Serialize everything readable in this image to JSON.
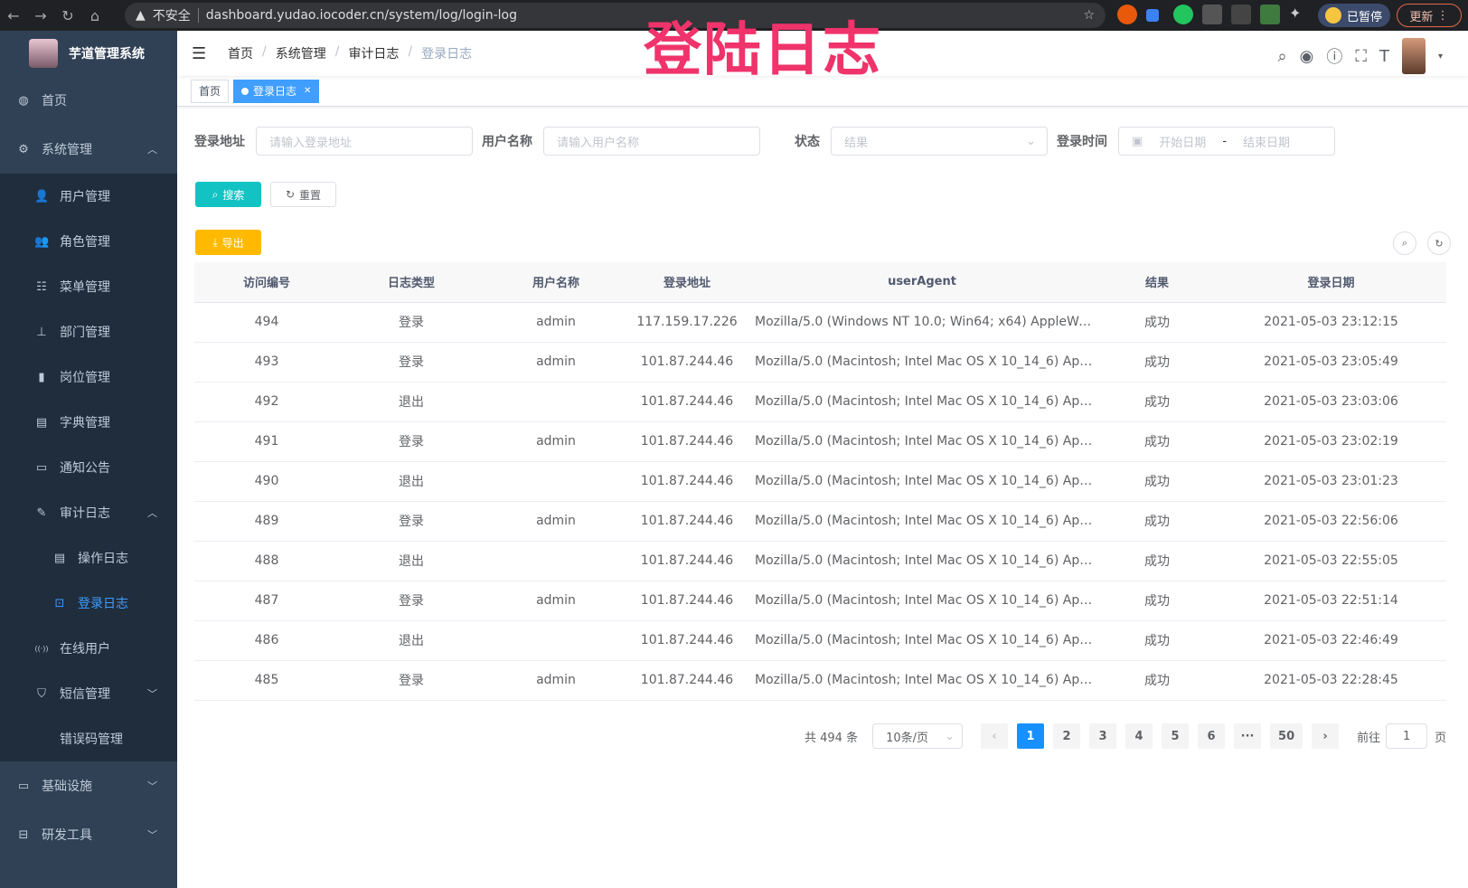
{
  "browser": {
    "security": "不安全",
    "url": "dashboard.yudao.iocoder.cn/system/log/login-log",
    "profile": "已暂停",
    "update": "更新"
  },
  "watermark": "登陆日志",
  "sidebar": {
    "title": "芋道管理系统",
    "items": [
      {
        "label": "首页",
        "icon": "dashboard-icon"
      },
      {
        "label": "系统管理",
        "icon": "gear-icon",
        "expanded": true
      },
      {
        "label": "用户管理",
        "icon": "user-icon"
      },
      {
        "label": "角色管理",
        "icon": "peoples-icon"
      },
      {
        "label": "菜单管理",
        "icon": "tree-table-icon"
      },
      {
        "label": "部门管理",
        "icon": "tree-icon"
      },
      {
        "label": "岗位管理",
        "icon": "post-icon"
      },
      {
        "label": "字典管理",
        "icon": "dict-icon"
      },
      {
        "label": "通知公告",
        "icon": "message-icon"
      },
      {
        "label": "审计日志",
        "icon": "log-icon",
        "expanded": true
      },
      {
        "label": "操作日志",
        "icon": "form-icon"
      },
      {
        "label": "登录日志",
        "icon": "logininfor-icon",
        "active": true
      },
      {
        "label": "在线用户",
        "icon": "online-icon"
      },
      {
        "label": "短信管理",
        "icon": "validcode-icon"
      },
      {
        "label": "错误码管理",
        "icon": "code-icon"
      },
      {
        "label": "基础设施",
        "icon": "monitor-icon"
      },
      {
        "label": "研发工具",
        "icon": "tool-icon"
      }
    ]
  },
  "breadcrumb": [
    "首页",
    "系统管理",
    "审计日志",
    "登录日志"
  ],
  "tags": [
    "首页",
    "登录日志"
  ],
  "filters": {
    "ip_label": "登录地址",
    "ip_placeholder": "请输入登录地址",
    "user_label": "用户名称",
    "user_placeholder": "请输入用户名称",
    "status_label": "状态",
    "status_placeholder": "结果",
    "time_label": "登录时间",
    "start_placeholder": "开始日期",
    "range_sep": "-",
    "end_placeholder": "结束日期"
  },
  "buttons": {
    "search": "搜索",
    "reset": "重置",
    "export": "导出"
  },
  "table": {
    "columns": [
      "访问编号",
      "日志类型",
      "用户名称",
      "登录地址",
      "userAgent",
      "结果",
      "登录日期"
    ],
    "rows": [
      [
        "494",
        "登录",
        "admin",
        "117.159.17.226",
        "Mozilla/5.0 (Windows NT 10.0; Win64; x64) AppleWebKit...",
        "成功",
        "2021-05-03 23:12:15"
      ],
      [
        "493",
        "登录",
        "admin",
        "101.87.244.46",
        "Mozilla/5.0 (Macintosh; Intel Mac OS X 10_14_6) AppleWe...",
        "成功",
        "2021-05-03 23:05:49"
      ],
      [
        "492",
        "退出",
        "",
        "101.87.244.46",
        "Mozilla/5.0 (Macintosh; Intel Mac OS X 10_14_6) AppleWe...",
        "成功",
        "2021-05-03 23:03:06"
      ],
      [
        "491",
        "登录",
        "admin",
        "101.87.244.46",
        "Mozilla/5.0 (Macintosh; Intel Mac OS X 10_14_6) AppleWe...",
        "成功",
        "2021-05-03 23:02:19"
      ],
      [
        "490",
        "退出",
        "",
        "101.87.244.46",
        "Mozilla/5.0 (Macintosh; Intel Mac OS X 10_14_6) AppleWe...",
        "成功",
        "2021-05-03 23:01:23"
      ],
      [
        "489",
        "登录",
        "admin",
        "101.87.244.46",
        "Mozilla/5.0 (Macintosh; Intel Mac OS X 10_14_6) AppleWe...",
        "成功",
        "2021-05-03 22:56:06"
      ],
      [
        "488",
        "退出",
        "",
        "101.87.244.46",
        "Mozilla/5.0 (Macintosh; Intel Mac OS X 10_14_6) AppleWe...",
        "成功",
        "2021-05-03 22:55:05"
      ],
      [
        "487",
        "登录",
        "admin",
        "101.87.244.46",
        "Mozilla/5.0 (Macintosh; Intel Mac OS X 10_14_6) AppleWe...",
        "成功",
        "2021-05-03 22:51:14"
      ],
      [
        "486",
        "退出",
        "",
        "101.87.244.46",
        "Mozilla/5.0 (Macintosh; Intel Mac OS X 10_14_6) AppleWe...",
        "成功",
        "2021-05-03 22:46:49"
      ],
      [
        "485",
        "登录",
        "admin",
        "101.87.244.46",
        "Mozilla/5.0 (Macintosh; Intel Mac OS X 10_14_6) AppleWe...",
        "成功",
        "2021-05-03 22:28:45"
      ]
    ]
  },
  "pagination": {
    "total": "共 494 条",
    "page_size": "10条/页",
    "pages": [
      "1",
      "2",
      "3",
      "4",
      "5",
      "6",
      "···",
      "50"
    ],
    "current": "1",
    "goto_label": "前往",
    "goto_value": "1",
    "goto_suffix": "页"
  },
  "colors": {
    "sidebar": "#304156",
    "primary": "#1890ff",
    "search": "#13c2c2",
    "export": "#ffba00",
    "watermark": "#f0336b"
  }
}
